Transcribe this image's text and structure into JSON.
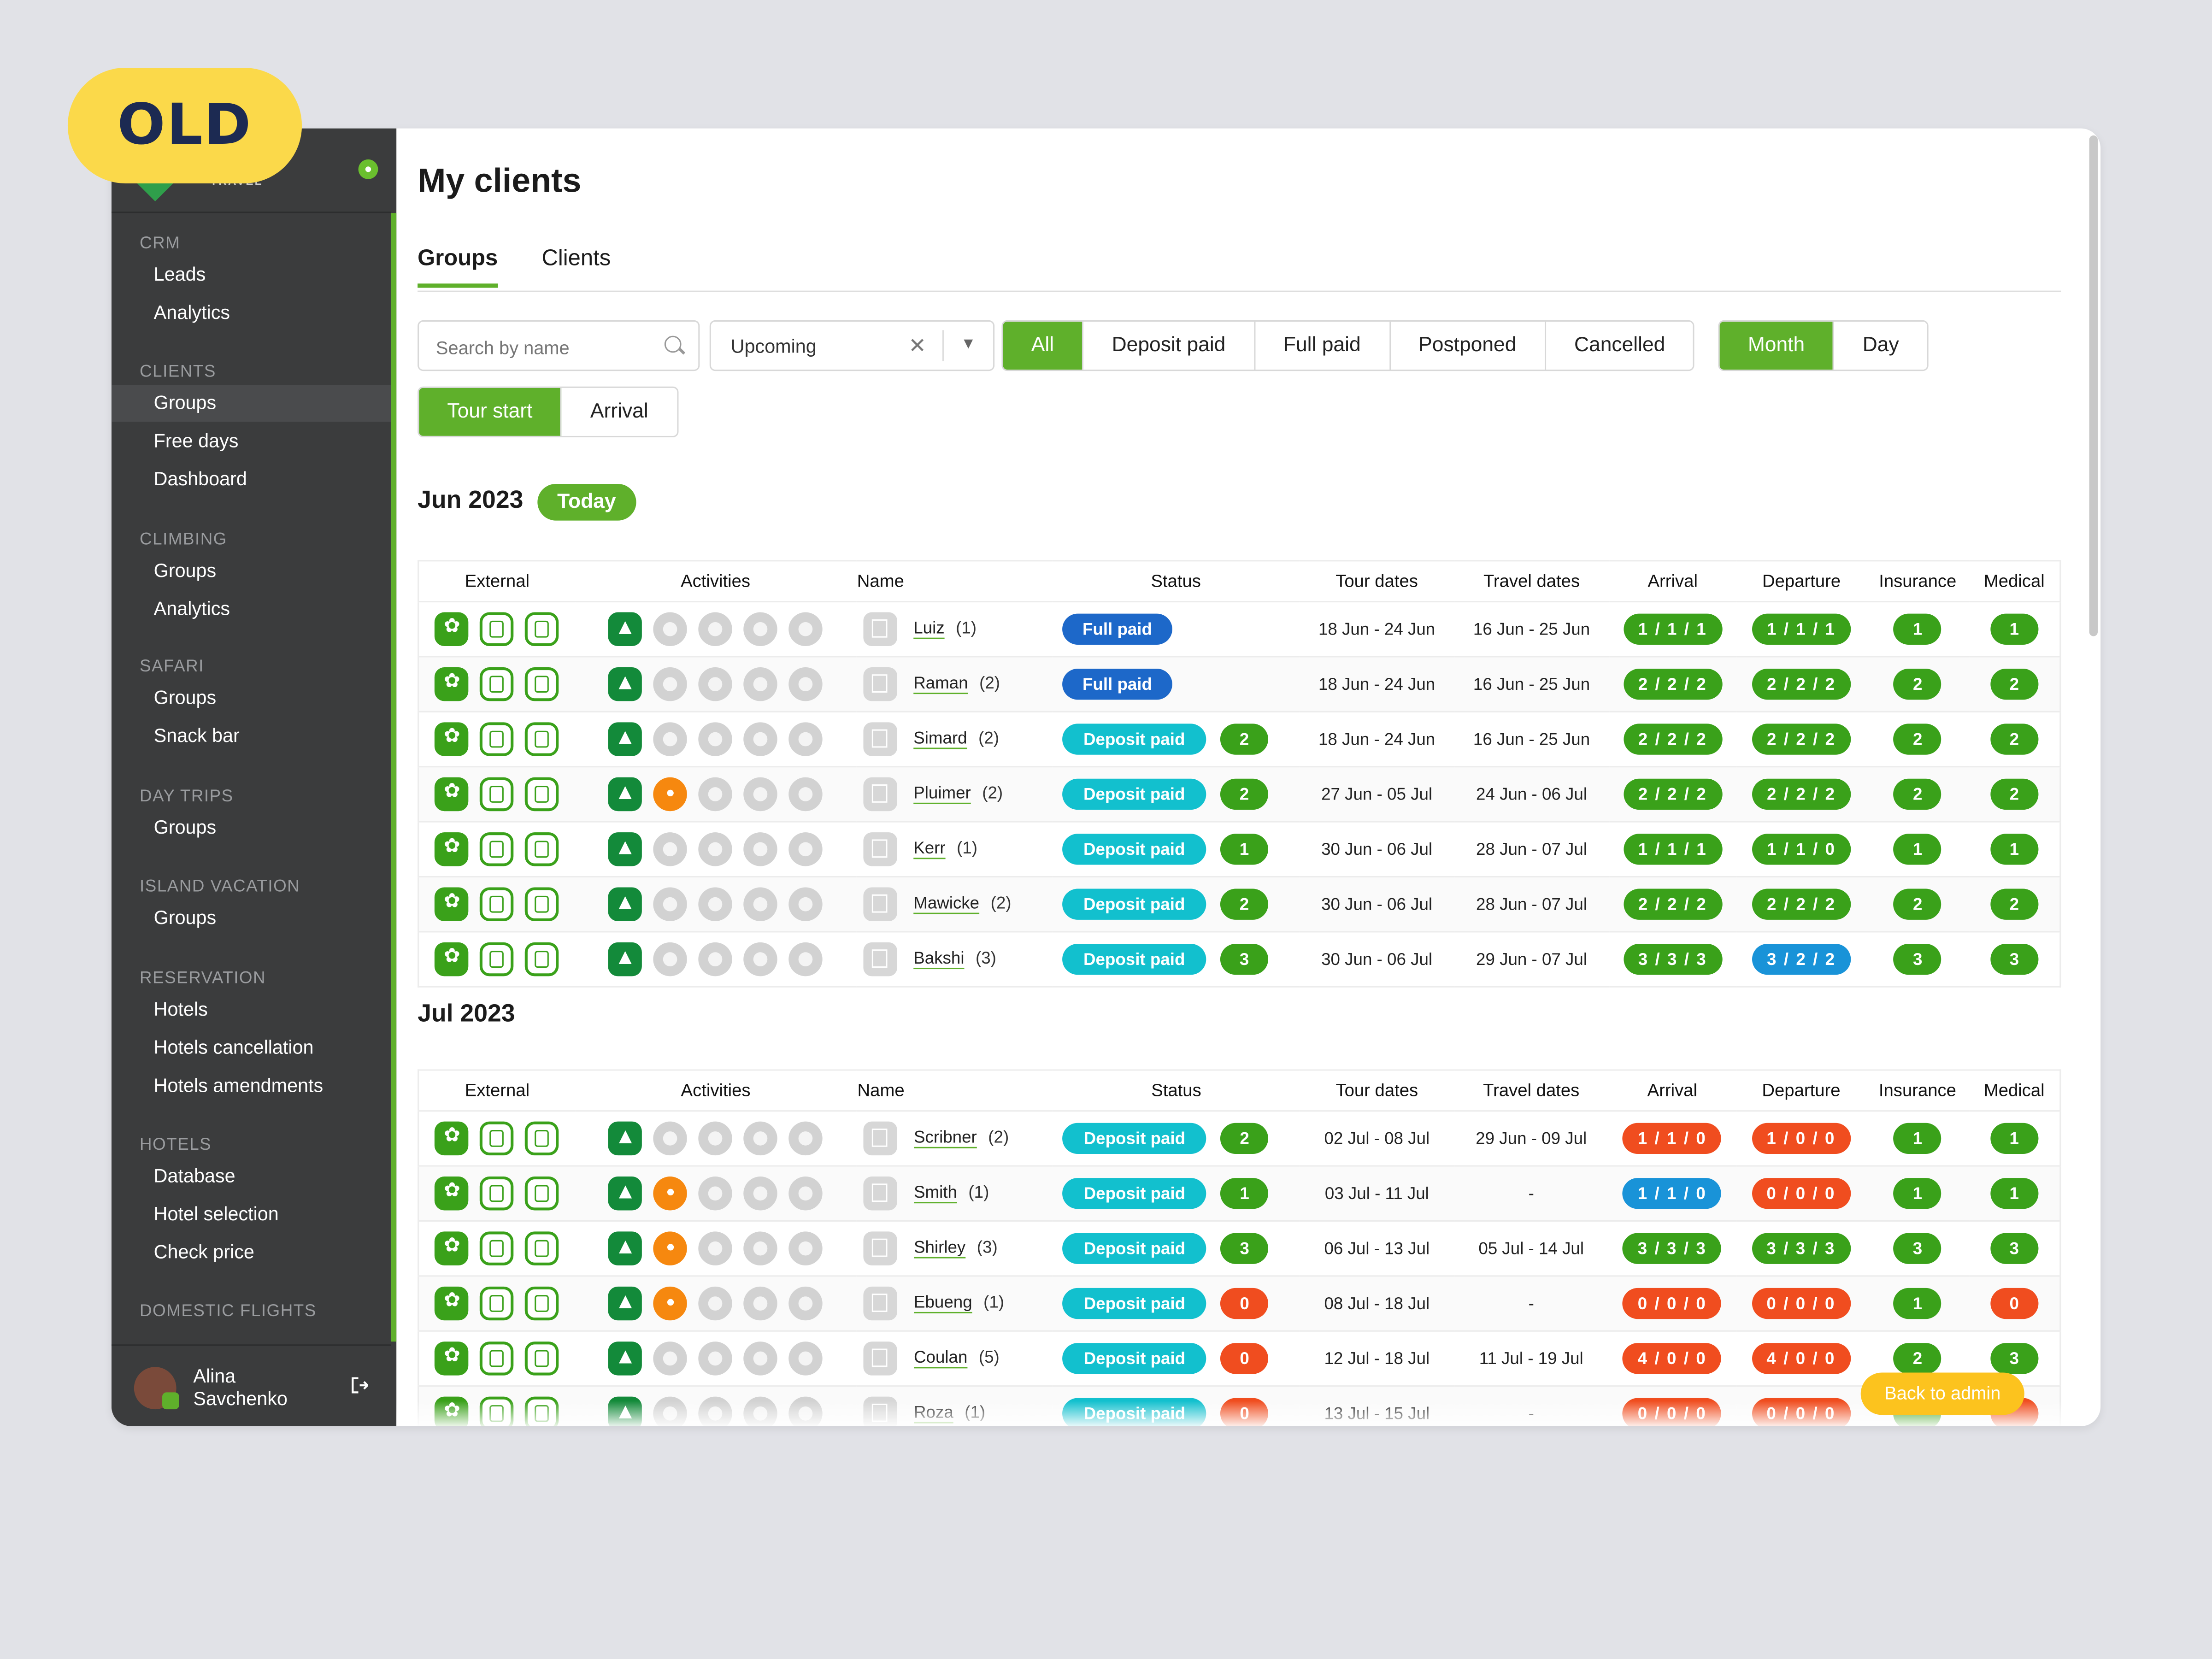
{
  "badge": "OLD",
  "brand": {
    "logo_text": "TRAVEL"
  },
  "sidebar": {
    "sections": [
      {
        "title": "CRM",
        "items": [
          "Leads",
          "Analytics"
        ]
      },
      {
        "title": "CLIENTS",
        "items": [
          "Groups",
          "Free days",
          "Dashboard"
        ]
      },
      {
        "title": "CLIMBING",
        "items": [
          "Groups",
          "Analytics"
        ]
      },
      {
        "title": "SAFARI",
        "items": [
          "Groups",
          "Snack bar"
        ]
      },
      {
        "title": "DAY TRIPS",
        "items": [
          "Groups"
        ]
      },
      {
        "title": "ISLAND VACATION",
        "items": [
          "Groups"
        ]
      },
      {
        "title": "RESERVATION",
        "items": [
          "Hotels",
          "Hotels cancellation",
          "Hotels amendments"
        ]
      },
      {
        "title": "HOTELS",
        "items": [
          "Database",
          "Hotel selection",
          "Check price"
        ]
      },
      {
        "title": "DOMESTIC FLIGHTS",
        "items": []
      }
    ],
    "active_item": "CLIENTS/Groups",
    "user": {
      "first": "Alina",
      "last": "Savchenko"
    }
  },
  "page": {
    "title": "My clients",
    "tabs": [
      "Groups",
      "Clients"
    ],
    "active_tab": "Groups"
  },
  "filters": {
    "search_placeholder": "Search by name",
    "period_value": "Upcoming",
    "status_options": [
      "All",
      "Deposit paid",
      "Full paid",
      "Postponed",
      "Cancelled"
    ],
    "status_selected": "All",
    "granularity_options": [
      "Month",
      "Day"
    ],
    "granularity_selected": "Month",
    "date_basis_options": [
      "Tour start",
      "Arrival"
    ],
    "date_basis_selected": "Tour start"
  },
  "table_headers": {
    "external": "External",
    "activities": "Activities",
    "name": "Name",
    "status": "Status",
    "tour_dates": "Tour dates",
    "travel_dates": "Travel dates",
    "arrival": "Arrival",
    "departure": "Departure",
    "insurance": "Insurance",
    "medical": "Medical"
  },
  "months": [
    {
      "title": "Jun 2023",
      "today_label": "Today",
      "rows": [
        {
          "name": "Luiz",
          "count": "(1)",
          "status": "Full paid",
          "status_num": "",
          "safari": false,
          "tour": "18 Jun - 24 Jun",
          "travel": "16 Jun - 25 Jun",
          "arrival": "1 / 1 / 1",
          "arrival_color": "green",
          "departure": "1 / 1 / 1",
          "departure_color": "green",
          "insurance": "1",
          "insurance_color": "green",
          "medical": "1",
          "medical_color": "green"
        },
        {
          "name": "Raman",
          "count": "(2)",
          "status": "Full paid",
          "status_num": "",
          "safari": false,
          "tour": "18 Jun - 24 Jun",
          "travel": "16 Jun - 25 Jun",
          "arrival": "2 / 2 / 2",
          "arrival_color": "green",
          "departure": "2 / 2 / 2",
          "departure_color": "green",
          "insurance": "2",
          "insurance_color": "green",
          "medical": "2",
          "medical_color": "green"
        },
        {
          "name": "Simard",
          "count": "(2)",
          "status": "Deposit paid",
          "status_num": "2",
          "safari": false,
          "tour": "18 Jun - 24 Jun",
          "travel": "16 Jun - 25 Jun",
          "arrival": "2 / 2 / 2",
          "arrival_color": "green",
          "departure": "2 / 2 / 2",
          "departure_color": "green",
          "insurance": "2",
          "insurance_color": "green",
          "medical": "2",
          "medical_color": "green"
        },
        {
          "name": "Pluimer",
          "count": "(2)",
          "status": "Deposit paid",
          "status_num": "2",
          "safari": true,
          "tour": "27 Jun - 05 Jul",
          "travel": "24 Jun - 06 Jul",
          "arrival": "2 / 2 / 2",
          "arrival_color": "green",
          "departure": "2 / 2 / 2",
          "departure_color": "green",
          "insurance": "2",
          "insurance_color": "green",
          "medical": "2",
          "medical_color": "green"
        },
        {
          "name": "Kerr",
          "count": "(1)",
          "status": "Deposit paid",
          "status_num": "1",
          "safari": false,
          "tour": "30 Jun - 06 Jul",
          "travel": "28 Jun - 07 Jul",
          "arrival": "1 / 1 / 1",
          "arrival_color": "green",
          "departure": "1 / 1 / 0",
          "departure_color": "green",
          "insurance": "1",
          "insurance_color": "green",
          "medical": "1",
          "medical_color": "green"
        },
        {
          "name": "Mawicke",
          "count": "(2)",
          "status": "Deposit paid",
          "status_num": "2",
          "safari": false,
          "tour": "30 Jun - 06 Jul",
          "travel": "28 Jun - 07 Jul",
          "arrival": "2 / 2 / 2",
          "arrival_color": "green",
          "departure": "2 / 2 / 2",
          "departure_color": "green",
          "insurance": "2",
          "insurance_color": "green",
          "medical": "2",
          "medical_color": "green"
        },
        {
          "name": "Bakshi",
          "count": "(3)",
          "status": "Deposit paid",
          "status_num": "3",
          "safari": false,
          "tour": "30 Jun - 06 Jul",
          "travel": "29 Jun - 07 Jul",
          "arrival": "3 / 3 / 3",
          "arrival_color": "green",
          "departure": "3 / 2 / 2",
          "departure_color": "blue",
          "insurance": "3",
          "insurance_color": "green",
          "medical": "3",
          "medical_color": "green"
        }
      ]
    },
    {
      "title": "Jul 2023",
      "today_label": "",
      "rows": [
        {
          "name": "Scribner",
          "count": "(2)",
          "status": "Deposit paid",
          "status_num": "2",
          "status_num_color": "green",
          "safari": false,
          "tour": "02 Jul - 08 Jul",
          "travel": "29 Jun - 09 Jul",
          "arrival": "1 / 1 / 0",
          "arrival_color": "red",
          "departure": "1 / 0 / 0",
          "departure_color": "red",
          "insurance": "1",
          "insurance_color": "green",
          "medical": "1",
          "medical_color": "green"
        },
        {
          "name": "Smith",
          "count": "(1)",
          "status": "Deposit paid",
          "status_num": "1",
          "status_num_color": "green",
          "safari": true,
          "tour": "03 Jul - 11 Jul",
          "travel": "-",
          "arrival": "1 / 1 / 0",
          "arrival_color": "blue",
          "departure": "0 / 0 / 0",
          "departure_color": "red",
          "insurance": "1",
          "insurance_color": "green",
          "medical": "1",
          "medical_color": "green"
        },
        {
          "name": "Shirley",
          "count": "(3)",
          "status": "Deposit paid",
          "status_num": "3",
          "status_num_color": "green",
          "safari": true,
          "tour": "06 Jul - 13 Jul",
          "travel": "05 Jul - 14 Jul",
          "arrival": "3 / 3 / 3",
          "arrival_color": "green",
          "departure": "3 / 3 / 3",
          "departure_color": "green",
          "insurance": "3",
          "insurance_color": "green",
          "medical": "3",
          "medical_color": "green"
        },
        {
          "name": "Ebueng",
          "count": "(1)",
          "status": "Deposit paid",
          "status_num": "0",
          "status_num_color": "red",
          "safari": true,
          "tour": "08 Jul - 18 Jul",
          "travel": "-",
          "arrival": "0 / 0 / 0",
          "arrival_color": "red",
          "departure": "0 / 0 / 0",
          "departure_color": "red",
          "insurance": "1",
          "insurance_color": "green",
          "medical": "0",
          "medical_color": "red"
        },
        {
          "name": "Coulan",
          "count": "(5)",
          "status": "Deposit paid",
          "status_num": "0",
          "status_num_color": "red",
          "safari": false,
          "tour": "12 Jul - 18 Jul",
          "travel": "11 Jul - 19 Jul",
          "arrival": "4 / 0 / 0",
          "arrival_color": "red",
          "departure": "4 / 0 / 0",
          "departure_color": "red",
          "insurance": "2",
          "insurance_color": "green",
          "medical": "3",
          "medical_color": "green"
        },
        {
          "name": "Roza",
          "count": "(1)",
          "status": "Deposit paid",
          "status_num": "0",
          "status_num_color": "red",
          "safari": false,
          "tour": "13 Jul - 15 Jul",
          "travel": "-",
          "arrival": "0 / 0 / 0",
          "arrival_color": "red",
          "departure": "0 / 0 / 0",
          "departure_color": "red",
          "insurance": "",
          "insurance_color": "green",
          "medical": "",
          "medical_color": "red"
        }
      ]
    }
  ],
  "floating": {
    "back_to_admin": "Back to admin"
  },
  "colors": {
    "brand_green": "#5fb02b",
    "full_paid": "#1d68c9",
    "deposit_paid": "#12c0ce",
    "alert_red": "#f04d1f",
    "info_blue": "#1993d8",
    "badge_yellow": "#fbd94a"
  }
}
